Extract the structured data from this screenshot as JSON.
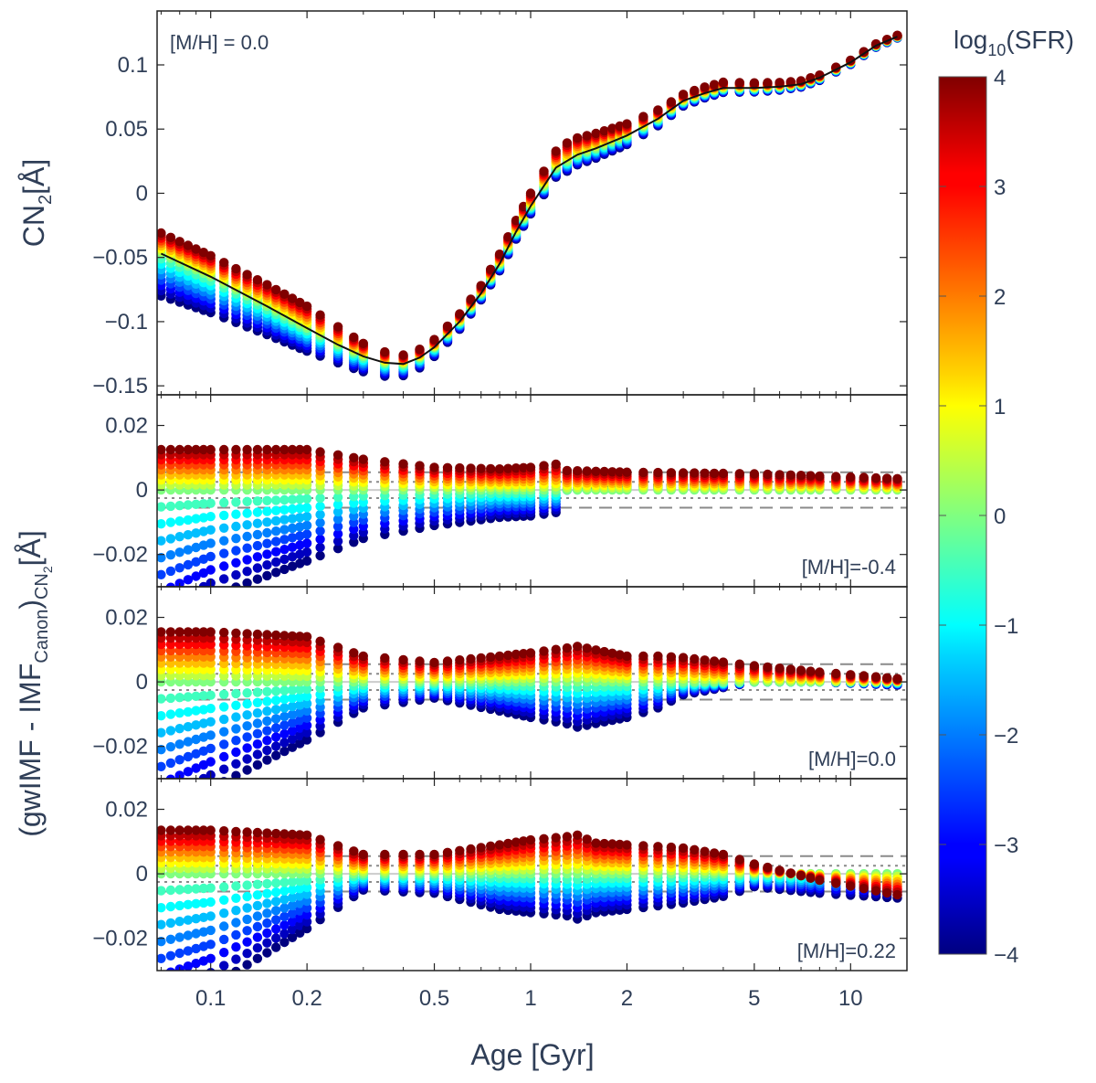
{
  "chart_data": {
    "type": "scatter",
    "x_label": "Age [Gyr]",
    "x_scale": "log",
    "x_range": [
      0.068,
      15
    ],
    "x_ticks": [
      {
        "value": 0.1,
        "label": "0.1"
      },
      {
        "value": 0.2,
        "label": "0.2"
      },
      {
        "value": 0.5,
        "label": "0.5"
      },
      {
        "value": 1,
        "label": "1"
      },
      {
        "value": 2,
        "label": "2"
      },
      {
        "value": 5,
        "label": "5"
      },
      {
        "value": 10,
        "label": "10"
      }
    ],
    "colorbar": {
      "title_main": "log",
      "title_sub": "10",
      "title_rest": "(SFR)",
      "range": [
        -4,
        4
      ],
      "colormap": "jet",
      "ticks": [
        "4",
        "3",
        "2",
        "1",
        "0",
        "−1",
        "−2",
        "−3",
        "−4"
      ]
    },
    "sfr_levels": [
      -4,
      -3.5,
      -3,
      -2.5,
      -2,
      -1.5,
      -1,
      -0.5,
      0,
      0.5,
      1,
      1.5,
      2,
      2.5,
      3,
      3.5,
      4
    ],
    "ages_gyr": [
      0.07,
      0.075,
      0.08,
      0.085,
      0.09,
      0.095,
      0.1,
      0.11,
      0.12,
      0.13,
      0.14,
      0.15,
      0.16,
      0.17,
      0.18,
      0.19,
      0.2,
      0.22,
      0.25,
      0.28,
      0.3,
      0.35,
      0.4,
      0.45,
      0.5,
      0.55,
      0.6,
      0.65,
      0.7,
      0.75,
      0.8,
      0.85,
      0.9,
      0.95,
      1.0,
      1.1,
      1.2,
      1.3,
      1.4,
      1.5,
      1.6,
      1.7,
      1.8,
      1.9,
      2.0,
      2.25,
      2.5,
      2.75,
      3.0,
      3.25,
      3.5,
      3.75,
      4.0,
      4.5,
      5.0,
      5.5,
      6.0,
      6.5,
      7.0,
      7.5,
      8.0,
      9.0,
      10.0,
      11.0,
      12.0,
      13.0,
      14.0
    ],
    "panels": [
      {
        "id": "top",
        "label": "[M/H] = 0.0",
        "label_position": "top-left",
        "y_label_main": "CN",
        "y_label_sub": "2",
        "y_label_unit": "[Å]",
        "y_range": [
          -0.157,
          0.142
        ],
        "y_ticks": [
          {
            "value": 0.1,
            "label": "0.1"
          },
          {
            "value": 0.05,
            "label": "0.05"
          },
          {
            "value": 0,
            "label": "0"
          },
          {
            "value": -0.05,
            "label": "−0.05"
          },
          {
            "value": -0.1,
            "label": "−0.1"
          },
          {
            "value": -0.15,
            "label": "−0.15"
          }
        ],
        "canonical_curve": {
          "ages_gyr": [
            0.07,
            0.1,
            0.15,
            0.2,
            0.25,
            0.3,
            0.35,
            0.4,
            0.45,
            0.5,
            0.6,
            0.7,
            0.8,
            0.9,
            1.0,
            1.2,
            1.4,
            1.6,
            2.0,
            2.5,
            3.0,
            3.5,
            4.0,
            5.0,
            6.0,
            7.0,
            8.0,
            10.0,
            12.0,
            14.0
          ],
          "values": [
            -0.047,
            -0.065,
            -0.088,
            -0.105,
            -0.118,
            -0.127,
            -0.132,
            -0.133,
            -0.128,
            -0.12,
            -0.1,
            -0.078,
            -0.055,
            -0.03,
            -0.01,
            0.02,
            0.03,
            0.035,
            0.045,
            0.058,
            0.072,
            0.078,
            0.082,
            0.082,
            0.083,
            0.085,
            0.09,
            0.102,
            0.115,
            0.122
          ]
        },
        "spread": {
          "ages_gyr": [
            0.07,
            0.2,
            0.25,
            0.3,
            0.4,
            0.5,
            0.7,
            1.0,
            1.3,
            2.0,
            3.0,
            5.0,
            8.0,
            14.0
          ],
          "up": [
            0.016,
            0.017,
            0.014,
            0.01,
            0.007,
            0.006,
            0.006,
            0.01,
            0.014,
            0.009,
            0.005,
            0.004,
            0.002,
            0.001
          ],
          "down": [
            0.033,
            0.018,
            0.014,
            0.012,
            0.009,
            0.007,
            0.005,
            0.006,
            0.008,
            0.007,
            0.004,
            0.003,
            0.002,
            0.001
          ]
        }
      },
      {
        "id": "mh-m04",
        "label": "[M/H]=-0.4",
        "label_position": "bottom-right",
        "y_range": [
          -0.03,
          0.0295
        ],
        "y_ticks": [
          {
            "value": 0.02,
            "label": "0.02"
          },
          {
            "value": 0,
            "label": "0"
          },
          {
            "value": -0.02,
            "label": "−0.02"
          }
        ],
        "ref_lines": {
          "dashed": [
            0.0055,
            -0.0055
          ],
          "dotted": [
            0.0025,
            -0.0025
          ]
        },
        "spread": {
          "ages_gyr": [
            0.07,
            0.1,
            0.2,
            0.3,
            0.5,
            0.8,
            1.0,
            1.2,
            1.3,
            2.0,
            5.0,
            14.0
          ],
          "up": [
            0.0125,
            0.0125,
            0.0125,
            0.0095,
            0.007,
            0.0065,
            0.007,
            0.008,
            0.006,
            0.0055,
            0.005,
            0.0035
          ],
          "down": [
            -0.042,
            -0.033,
            -0.022,
            -0.015,
            -0.011,
            -0.0085,
            -0.008,
            -0.007,
            0.0,
            0.0015,
            0.002,
            0.0015
          ]
        }
      },
      {
        "id": "mh-00",
        "label": "[M/H]=0.0",
        "label_position": "bottom-right",
        "y_range": [
          -0.03,
          0.0295
        ],
        "y_ticks": [
          {
            "value": 0.02,
            "label": "0.02"
          },
          {
            "value": 0,
            "label": "0"
          },
          {
            "value": -0.02,
            "label": "−0.02"
          }
        ],
        "ref_lines": {
          "dashed": [
            0.0055,
            -0.0055
          ],
          "dotted": [
            0.0025,
            -0.0025
          ]
        },
        "spread": {
          "ages_gyr": [
            0.07,
            0.1,
            0.2,
            0.3,
            0.5,
            0.8,
            1.0,
            1.3,
            1.4,
            2.0,
            2.5,
            3.0,
            5.0,
            8.0,
            14.0
          ],
          "up": [
            0.0155,
            0.0155,
            0.014,
            0.008,
            0.006,
            0.008,
            0.009,
            0.0105,
            0.011,
            0.008,
            0.008,
            0.0075,
            0.005,
            0.003,
            0.001
          ],
          "down": [
            -0.042,
            -0.033,
            -0.018,
            -0.008,
            -0.005,
            -0.009,
            -0.011,
            -0.013,
            -0.014,
            -0.011,
            -0.008,
            -0.004,
            0.0,
            0.0,
            -0.001
          ]
        }
      },
      {
        "id": "mh-022",
        "label": "[M/H]=0.22",
        "label_position": "bottom-right",
        "y_range": [
          -0.03,
          0.0295
        ],
        "y_ticks": [
          {
            "value": 0.02,
            "label": "0.02"
          },
          {
            "value": 0,
            "label": "0"
          },
          {
            "value": -0.02,
            "label": "−0.02"
          }
        ],
        "ref_lines": {
          "dashed": [
            0.0055,
            -0.0055
          ],
          "dotted": [
            0.0025,
            -0.0025
          ]
        },
        "spread": {
          "ages_gyr": [
            0.07,
            0.1,
            0.2,
            0.3,
            0.5,
            0.8,
            1.0,
            1.3,
            1.4,
            1.6,
            2.0,
            3.0,
            4.0,
            5.0,
            8.0,
            14.0
          ],
          "up": [
            0.0135,
            0.0135,
            0.012,
            0.006,
            0.006,
            0.009,
            0.0105,
            0.0115,
            0.012,
            0.0095,
            0.009,
            0.008,
            0.006,
            0.003,
            -0.002,
            -0.0065
          ],
          "down": [
            -0.042,
            -0.035,
            -0.017,
            -0.005,
            -0.006,
            -0.011,
            -0.012,
            -0.013,
            -0.014,
            -0.012,
            -0.011,
            -0.009,
            -0.007,
            -0.004,
            -0.006,
            -0.0075
          ]
        }
      }
    ],
    "shared_y_label": {
      "prefix": "(gwIMF - IMF",
      "sub1": "Canon",
      "middle": ")",
      "sub2": "CN",
      "sub3": "2",
      "suffix": "[Å]"
    }
  }
}
